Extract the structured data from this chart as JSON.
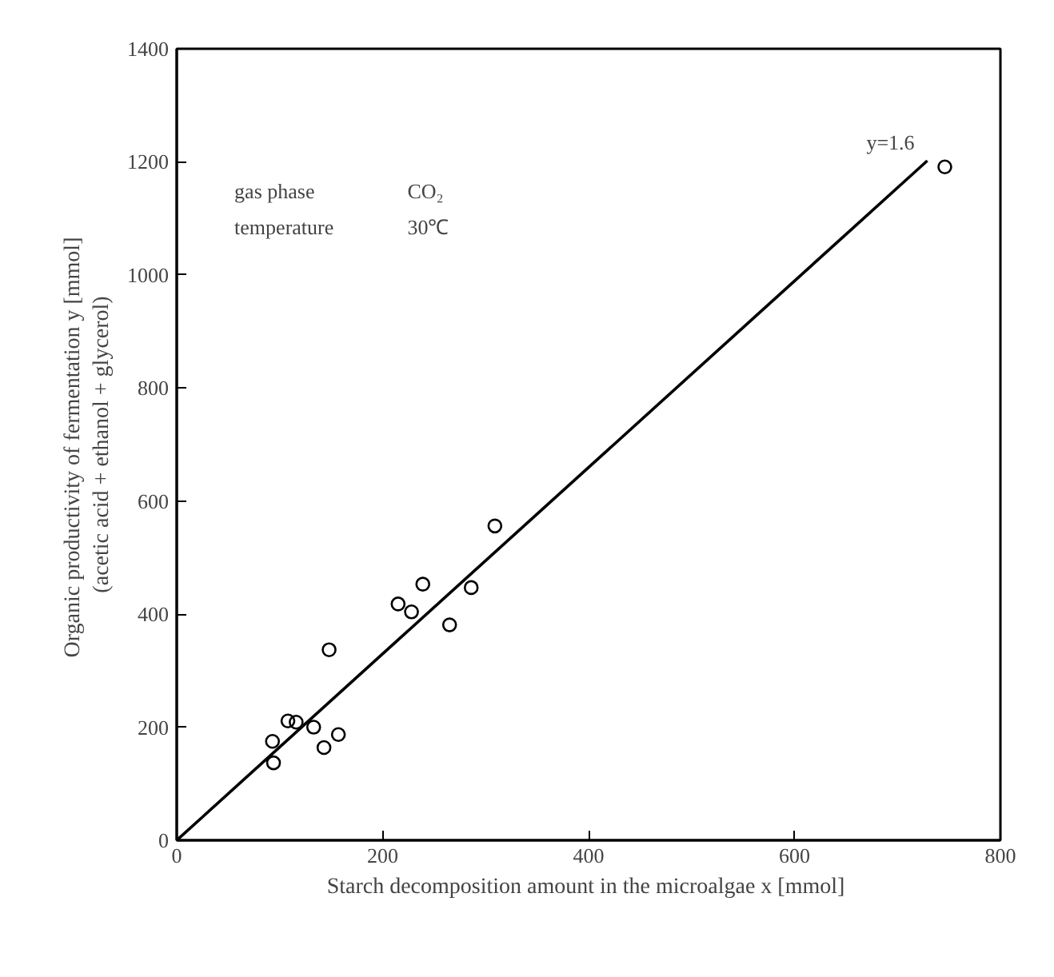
{
  "chart_data": {
    "type": "scatter",
    "xlabel": "Starch decomposition amount in the microalgae  x [mmol]",
    "ylabel": "Organic productivity of fermentation  y [mmol]\n(acetic acid + ethanol + glycerol)",
    "x": [
      93,
      94,
      108,
      116,
      133,
      143,
      157,
      148,
      215,
      228,
      239,
      265,
      286,
      309,
      746
    ],
    "series": [
      {
        "color": "#000000",
        "marker": "circle",
        "values": [
          175,
          137,
          211,
          209,
          200,
          164,
          187,
          337,
          418,
          404,
          453,
          381,
          447,
          556,
          1191
        ]
      },
      {
        "type": "line",
        "color": "#000000",
        "x": [
          0,
          729
        ],
        "values": [
          0,
          1202
        ]
      }
    ],
    "grid": false,
    "xlim": [
      0,
      800
    ],
    "xticks": [
      0,
      200,
      400,
      600,
      800
    ],
    "ylim": [
      0,
      1400
    ],
    "yticks": [
      0,
      200,
      400,
      600,
      800,
      1000,
      1200,
      1400
    ],
    "annotations": [
      "y=1.6",
      "gas phase",
      "CO₂",
      "temperature",
      "30℃"
    ]
  }
}
